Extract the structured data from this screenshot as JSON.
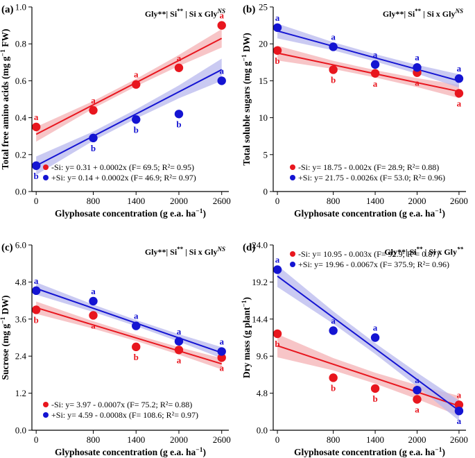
{
  "figure": {
    "x_axis_label": "Glyphosate concentration (g e.a. ha",
    "x_axis_label_sup": "−1",
    "x_axis_label_end": ")"
  },
  "chart_data": [
    {
      "type": "scatter",
      "panel_label": "(a)",
      "stat_parts": [
        "Gly**| Si",
        "**",
        " | Si x Gly",
        "NS"
      ],
      "ylabel_parts": [
        "Total free amino acids (mg g",
        "−1",
        " FW)"
      ],
      "x": [
        0,
        800,
        1400,
        2000,
        2600
      ],
      "xticks": [
        "0",
        "800",
        "1400",
        "2000",
        "2600"
      ],
      "xlim": [
        -60,
        2700
      ],
      "ylim": [
        0,
        1.0
      ],
      "yticks": [
        "0.0",
        "0.2",
        "0.4",
        "0.6",
        "0.8",
        "1.0"
      ],
      "series": [
        {
          "name": "-Si",
          "color": "#e8161e",
          "band": "#f4b2b4",
          "values": [
            0.35,
            0.44,
            0.58,
            0.67,
            0.9
          ],
          "letters": [
            "a",
            "a",
            "a",
            "a",
            "a"
          ],
          "letter_pos": [
            "above",
            "above",
            "above",
            "above",
            "above"
          ],
          "fit": {
            "intercept": 0.31,
            "slope": 0.0002
          },
          "band_hw": [
            0.04,
            0.02,
            0.02,
            0.03,
            0.05
          ],
          "legend": "-Si: y= 0.31 + 0.0002x (F= 69.5; R²= 0.95)"
        },
        {
          "name": "+Si",
          "color": "#1414d2",
          "band": "#b8b8ee",
          "values": [
            0.14,
            0.29,
            0.39,
            0.42,
            0.6
          ],
          "letters": [
            "b",
            "b",
            "b",
            "b",
            "a"
          ],
          "letter_pos": [
            "below",
            "below",
            "below",
            "below",
            "above"
          ],
          "fit": {
            "intercept": 0.14,
            "slope": 0.0002
          },
          "band_hw": [
            0.05,
            0.025,
            0.025,
            0.035,
            0.06
          ],
          "legend": "+Si: y= 0.14 + 0.0002x (F= 46.9; R²= 0.97)"
        }
      ]
    },
    {
      "type": "scatter",
      "panel_label": "(b)",
      "stat_parts": [
        "Gly**| Si",
        "**",
        " | Si x Gly",
        "NS"
      ],
      "ylabel_parts": [
        "Total soluble sugars (mg g",
        "−1",
        " DW)"
      ],
      "x": [
        0,
        800,
        1400,
        2000,
        2600
      ],
      "xticks": [
        "0",
        "800",
        "1400",
        "2000",
        "2600"
      ],
      "xlim": [
        -60,
        2700
      ],
      "ylim": [
        0,
        25
      ],
      "yticks": [
        "0",
        "5",
        "10",
        "15",
        "20",
        "25"
      ],
      "series": [
        {
          "name": "-Si",
          "color": "#e8161e",
          "band": "#f4b2b4",
          "values": [
            19.1,
            16.5,
            16.0,
            16.1,
            13.3
          ],
          "letters": [
            "b",
            "b",
            "a",
            "a",
            "a"
          ],
          "letter_pos": [
            "below",
            "below",
            "below",
            "below",
            "below"
          ],
          "fit": {
            "intercept": 18.75,
            "slope": -0.002
          },
          "band_hw": [
            1.0,
            0.55,
            0.5,
            0.6,
            0.9
          ],
          "legend": "-Si: y= 18.75 - 0.002x (F= 28.9; R²= 0.88)"
        },
        {
          "name": "+Si",
          "color": "#1414d2",
          "band": "#b8b8ee",
          "values": [
            22.2,
            19.6,
            17.2,
            16.8,
            15.3
          ],
          "letters": [
            "a",
            "a",
            "a",
            "a",
            "a"
          ],
          "letter_pos": [
            "above",
            "above",
            "above",
            "above",
            "above"
          ],
          "fit": {
            "intercept": 21.75,
            "slope": -0.0026
          },
          "band_hw": [
            1.0,
            0.55,
            0.5,
            0.6,
            0.9
          ],
          "legend": "+Si: y= 21.75 - 0.0026x (F= 53.0; R²= 0.96)"
        }
      ]
    },
    {
      "type": "scatter",
      "panel_label": "(c)",
      "stat_parts": [
        "Gly**| Si",
        "**",
        " | Si x Gly",
        "NS"
      ],
      "ylabel_parts": [
        "Sucrose (mg g",
        "−1",
        " DW)"
      ],
      "x": [
        0,
        800,
        1400,
        2000,
        2600
      ],
      "xticks": [
        "0",
        "800",
        "1400",
        "2000",
        "2600"
      ],
      "xlim": [
        -60,
        2700
      ],
      "ylim": [
        0,
        6.0
      ],
      "yticks": [
        "0.0",
        "1.2",
        "2.4",
        "3.6",
        "4.8",
        "6.0"
      ],
      "series": [
        {
          "name": "-Si",
          "color": "#e8161e",
          "band": "#f4b2b4",
          "values": [
            3.9,
            3.72,
            2.7,
            2.6,
            2.35
          ],
          "letters": [
            "b",
            "a",
            "b",
            "a",
            "a"
          ],
          "letter_pos": [
            "below",
            "below",
            "below",
            "below",
            "below"
          ],
          "fit": {
            "intercept": 3.97,
            "slope": -0.0007
          },
          "band_hw": [
            0.2,
            0.12,
            0.1,
            0.12,
            0.18
          ],
          "legend": "-Si: y= 3.97 - 0.0007x (F= 75.2; R²= 0.88)"
        },
        {
          "name": "+Si",
          "color": "#1414d2",
          "band": "#b8b8ee",
          "values": [
            4.52,
            4.18,
            3.38,
            2.88,
            2.55
          ],
          "letters": [
            "a",
            "a",
            "a",
            "a",
            "a"
          ],
          "letter_pos": [
            "above",
            "above",
            "above",
            "above",
            "above"
          ],
          "fit": {
            "intercept": 4.59,
            "slope": -0.0008
          },
          "band_hw": [
            0.2,
            0.12,
            0.1,
            0.12,
            0.18
          ],
          "legend": "+Si: y= 4.59 - 0.0008x (F= 108.6; R²= 0.97)"
        }
      ]
    },
    {
      "type": "scatter",
      "panel_label": "(d)",
      "stat_parts": [
        "Gly**| Si",
        "**",
        " | Si x Gly",
        "**"
      ],
      "ylabel_parts": [
        "Dry mass (g plant",
        "−1",
        ")"
      ],
      "x": [
        0,
        800,
        1400,
        2000,
        2600
      ],
      "xticks": [
        "0",
        "800",
        "1400",
        "2000",
        "2600"
      ],
      "xlim": [
        -60,
        2700
      ],
      "ylim": [
        0,
        24.0
      ],
      "yticks": [
        "0.0",
        "4.8",
        "9.6",
        "14.4",
        "19.2",
        "24.0"
      ],
      "series": [
        {
          "name": "-Si",
          "color": "#e8161e",
          "band": "#f4b2b4",
          "values": [
            12.5,
            6.8,
            5.4,
            4.0,
            3.3
          ],
          "letters": [
            "b",
            "b",
            "b",
            "a",
            "a"
          ],
          "letter_pos": [
            "below",
            "below",
            "below",
            "below",
            "above"
          ],
          "fit": {
            "intercept": 10.95,
            "slope": -0.003
          },
          "band_hw": [
            1.5,
            0.8,
            0.7,
            0.9,
            1.3
          ],
          "legend": "-Si: y= 10.95 - 0.003x (F= 92.9; R²= 0.87)"
        },
        {
          "name": "+Si",
          "color": "#1414d2",
          "band": "#b8b8ee",
          "values": [
            20.8,
            12.9,
            12.0,
            5.2,
            2.5
          ],
          "letters": [
            "a",
            "a",
            "a",
            "a",
            "a"
          ],
          "letter_pos": [
            "above",
            "above",
            "above",
            "above",
            "below"
          ],
          "fit": {
            "intercept": 19.96,
            "slope": -0.0067
          },
          "band_hw": [
            1.4,
            0.8,
            0.7,
            0.9,
            1.3
          ],
          "legend": "+Si: y= 19.96 - 0.0067x (F= 375.9; R²= 0.96)"
        }
      ]
    }
  ]
}
